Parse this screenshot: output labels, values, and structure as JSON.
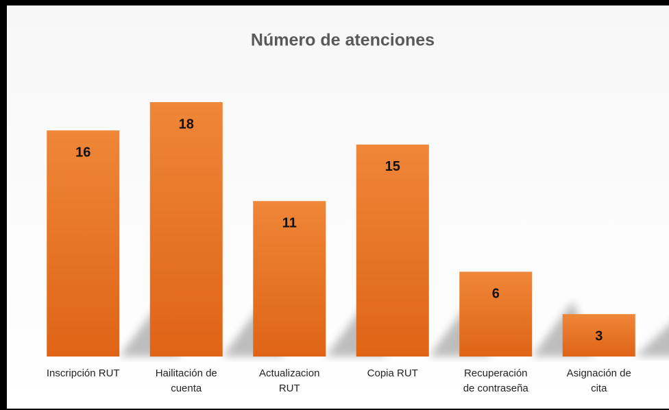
{
  "chart_data": {
    "type": "bar",
    "title": "Número de atenciones",
    "categories": [
      "Inscripción RUT",
      "Hailitación de cuenta",
      "Actualizacion RUT",
      "Copia RUT",
      "Recuperación de contraseña",
      "Asignación de cita"
    ],
    "values": [
      16,
      18,
      11,
      15,
      6,
      3
    ],
    "color": "#ed7d31",
    "ylim": [
      0,
      18
    ]
  }
}
